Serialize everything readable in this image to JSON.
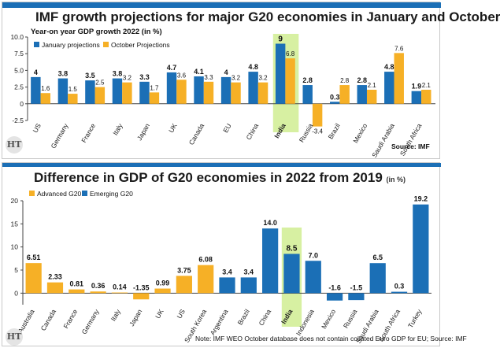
{
  "colors": {
    "blue": "#1b6fb6",
    "orange": "#f6b026",
    "india_highlight": "#d7f0a2",
    "axis": "#444444",
    "grid": "#dddddd"
  },
  "chart1": {
    "title": "IMF growth projections for major G20 economies in January and October",
    "subtitle": "Year-on year GDP growth 2022 (in %)",
    "source": "Source: IMF",
    "logo": "HT",
    "legend": [
      "January projections",
      "October Projections"
    ]
  },
  "chart2": {
    "title": "Difference in GDP of G20 economies in 2022 from 2019",
    "unit": "(in %)",
    "logo": "HT",
    "note": "Note: IMF WEO October database does not contain collated Euro GDP for EU; Source: IMF",
    "legend": [
      "Advanced G20",
      "Emerging G20"
    ]
  },
  "chart_data": [
    {
      "type": "bar",
      "title": "IMF growth projections for major G20 economies in January and October",
      "subtitle": "Year-on year GDP growth 2022 (in %)",
      "categories": [
        "US",
        "Germany",
        "France",
        "Italy",
        "Japan",
        "UK",
        "Canada",
        "EU",
        "China",
        "India",
        "Russia",
        "Brazil",
        "Mexico",
        "Saudi Arabia",
        "South Africa"
      ],
      "series": [
        {
          "name": "January projections",
          "color": "#1b6fb6",
          "values": [
            4,
            3.8,
            3.5,
            3.8,
            3.3,
            4.7,
            4.1,
            4,
            4.8,
            9,
            2.8,
            0.3,
            2.8,
            4.8,
            1.9
          ]
        },
        {
          "name": "October Projections",
          "color": "#f6b026",
          "values": [
            1.6,
            1.5,
            2.5,
            3.2,
            1.7,
            3.6,
            3.3,
            3.2,
            3.2,
            6.8,
            -3.4,
            2.8,
            2.1,
            7.6,
            2.1
          ]
        }
      ],
      "value_labels": [
        [
          "4",
          "3.8",
          "3.5",
          "3.8",
          "3.3",
          "4.7",
          "4.1",
          "4",
          "4.8",
          "9",
          "2.8",
          "0.3",
          "2.8",
          "4.8",
          "1.9"
        ],
        [
          "1.6",
          "1.5",
          "2.5",
          "3.2",
          "1.7",
          "3.6",
          "3.3",
          "3.2",
          "3.2",
          "6.8",
          "-3.4",
          "2.8",
          "2.1",
          "7.6",
          "2.1"
        ]
      ],
      "highlight": "India",
      "ylim": [
        -2.5,
        10
      ],
      "yticks": [
        10.0,
        7.5,
        5.0,
        2.5,
        0,
        -2.5
      ],
      "ytick_labels": [
        "10.0",
        "7.5",
        "5.0",
        "2.5",
        "0",
        "-2.5"
      ],
      "legend_position": "top-left",
      "grid": false
    },
    {
      "type": "bar",
      "title": "Difference in GDP of G20 economies in 2022 from 2019",
      "unit": "(in %)",
      "categories": [
        "Australia",
        "Canada",
        "France",
        "Germany",
        "Italy",
        "Japan",
        "UK",
        "US",
        "South Korea",
        "Argentina",
        "Brazil",
        "China",
        "India",
        "Indonesia",
        "Mexico",
        "Russia",
        "Saudi Arabia",
        "South Africa",
        "Turkey"
      ],
      "values": [
        6.51,
        2.33,
        0.81,
        0.36,
        0.14,
        -1.35,
        0.99,
        3.75,
        6.08,
        3.4,
        3.4,
        14.0,
        8.5,
        7.0,
        -1.6,
        -1.5,
        6.5,
        0.3,
        19.2
      ],
      "value_labels": [
        "6.51",
        "2.33",
        "0.81",
        "0.36",
        "0.14",
        "-1.35",
        "0.99",
        "3.75",
        "6.08",
        "3.4",
        "3.4",
        "14.0",
        "8.5",
        "7.0",
        "-1.6",
        "-1.5",
        "6.5",
        "0.3",
        "19.2"
      ],
      "groups": [
        "Advanced G20",
        "Advanced G20",
        "Advanced G20",
        "Advanced G20",
        "Advanced G20",
        "Advanced G20",
        "Advanced G20",
        "Advanced G20",
        "Advanced G20",
        "Emerging G20",
        "Emerging G20",
        "Emerging G20",
        "Emerging G20",
        "Emerging G20",
        "Emerging G20",
        "Emerging G20",
        "Emerging G20",
        "Emerging G20",
        "Emerging G20"
      ],
      "group_colors": {
        "Advanced G20": "#f6b026",
        "Emerging G20": "#1b6fb6"
      },
      "highlight": "India",
      "ylim": [
        -2.5,
        20
      ],
      "yticks": [
        20,
        15,
        10,
        5,
        0
      ],
      "ytick_labels": [
        "20",
        "15",
        "10",
        "5",
        "0"
      ],
      "legend_position": "top-left",
      "grid": false
    }
  ]
}
